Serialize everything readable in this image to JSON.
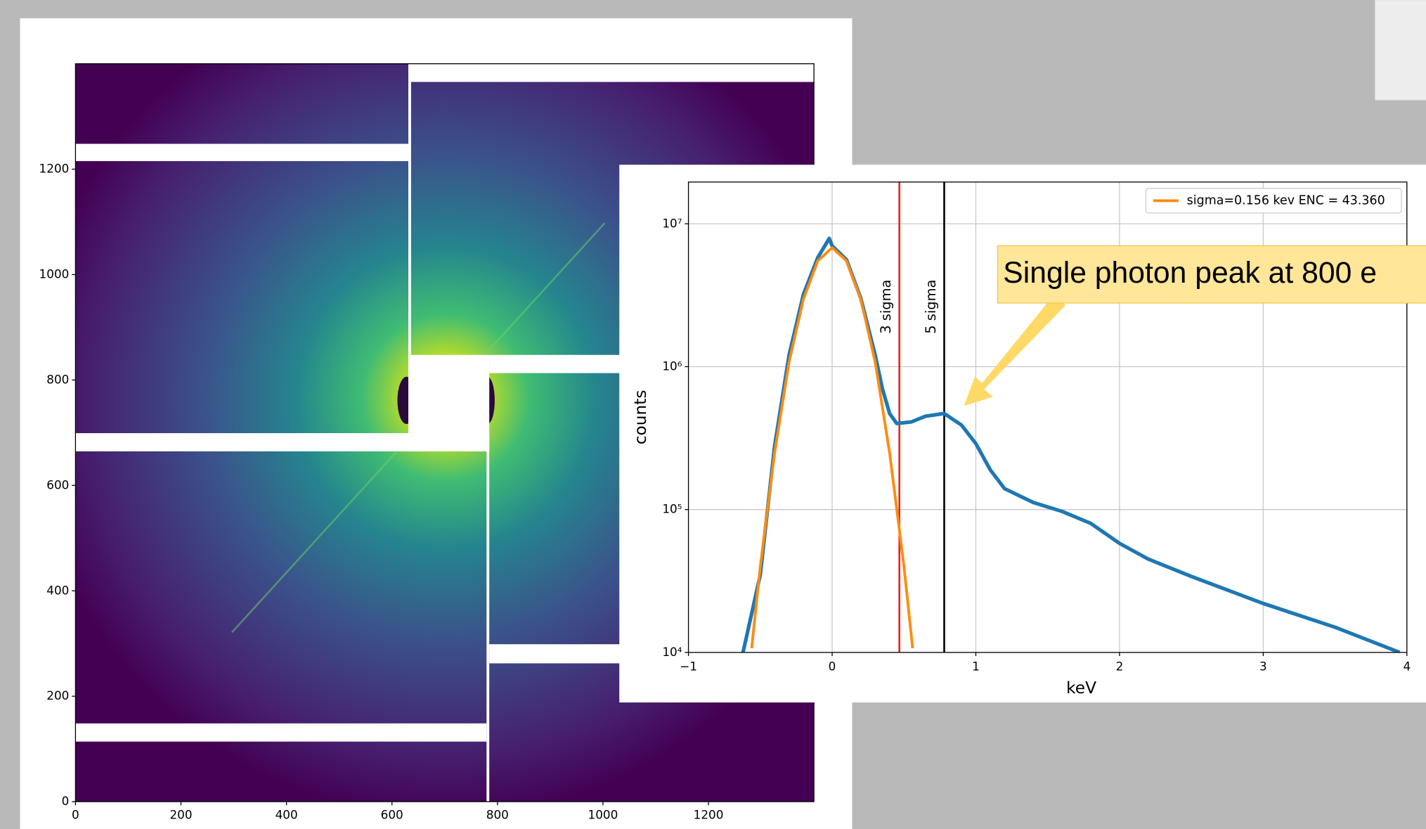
{
  "chart_data": [
    {
      "type": "image",
      "colormap": "viridis",
      "xlim": [
        0,
        1400
      ],
      "ylim": [
        0,
        1400
      ],
      "xticks": [
        0,
        200,
        400,
        600,
        800,
        1000,
        1200
      ],
      "yticks": [
        0,
        200,
        400,
        600,
        800,
        1000,
        1200
      ]
    },
    {
      "type": "line",
      "log_y": true,
      "grid": true,
      "legend": "upper right",
      "xlabel": "keV",
      "ylabel": "counts",
      "xlim": [
        -1,
        4
      ],
      "ylim": [
        10000,
        19600000
      ],
      "xticks": [
        {
          "value": -1,
          "label": "−1"
        },
        0,
        1,
        2,
        3,
        4
      ],
      "yticks": [
        {
          "value": 10000,
          "label": "10⁴"
        },
        {
          "value": 100000,
          "label": "10⁵"
        },
        {
          "value": 1000000,
          "label": "10⁶"
        },
        {
          "value": 10000000,
          "label": "10⁷"
        }
      ],
      "series": [
        {
          "color": "#1f77b4",
          "x": [
            -0.62,
            -0.5,
            -0.4,
            -0.3,
            -0.2,
            -0.1,
            -0.02,
            0,
            0.1,
            0.2,
            0.3,
            0.35,
            0.4,
            0.45,
            0.55,
            0.65,
            0.78,
            0.9,
            1.0,
            1.1,
            1.2,
            1.4,
            1.6,
            1.8,
            2.0,
            2.2,
            2.5,
            3.0,
            3.5,
            3.95
          ],
          "values": [
            10000,
            35000,
            280000,
            1200000,
            3200000,
            5800000,
            7900000,
            7000000,
            5600000,
            3000000,
            1200000,
            700000,
            470000,
            400000,
            410000,
            450000,
            470000,
            390000,
            290000,
            190000,
            140000,
            112000,
            97000,
            80000,
            58000,
            45000,
            34000,
            22000,
            15000,
            10000
          ]
        },
        {
          "name": "sigma=0.156 kev ENC = 43.360",
          "color": "#ff8c0e",
          "x": [
            -0.56,
            -0.5,
            -0.4,
            -0.3,
            -0.2,
            -0.1,
            0,
            0.1,
            0.2,
            0.3,
            0.4,
            0.5,
            0.56
          ],
          "values": [
            10700,
            40000,
            250000,
            1070000,
            2960000,
            5500000,
            6800000,
            5500000,
            2960000,
            1070000,
            250000,
            40000,
            10700
          ]
        }
      ],
      "vlines": [
        {
          "x": 0.468,
          "color": "#e8201a",
          "label": "3 sigma"
        },
        {
          "x": 0.78,
          "color": "#000000",
          "label": "5 sigma"
        }
      ],
      "annotation": "Single photon peak at 800 e"
    }
  ]
}
